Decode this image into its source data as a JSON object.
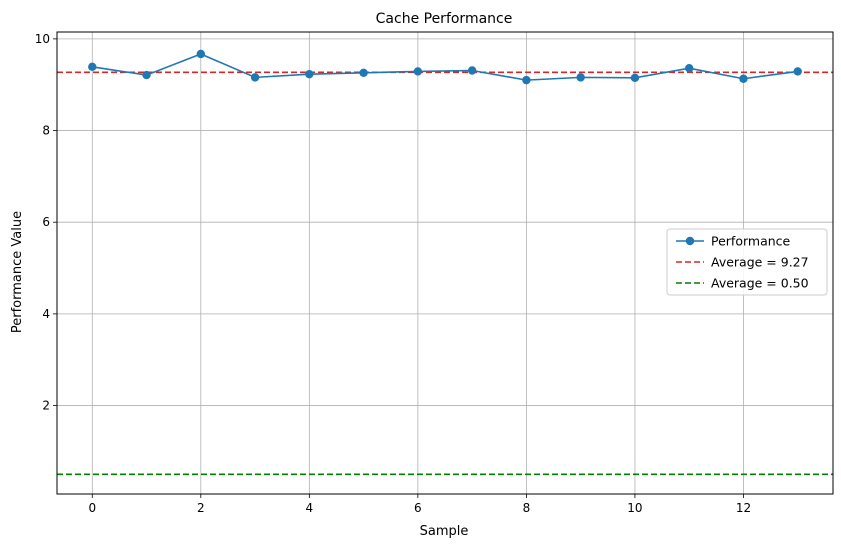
{
  "chart_data": {
    "type": "line",
    "title": "Cache Performance",
    "xlabel": "Sample",
    "ylabel": "Performance Value",
    "xlim": [
      -0.65,
      13.65
    ],
    "ylim": [
      0.07,
      10.15
    ],
    "xticks": [
      0,
      2,
      4,
      6,
      8,
      10,
      12
    ],
    "xtick_labels": [
      "0",
      "2",
      "4",
      "6",
      "8",
      "10",
      "12"
    ],
    "yticks": [
      2,
      4,
      6,
      8,
      10
    ],
    "ytick_labels": [
      "2",
      "4",
      "6",
      "8",
      "10"
    ],
    "grid": true,
    "legend_position": "center-right",
    "series": [
      {
        "name": "Performance",
        "color": "#1f77b4",
        "marker": "circle",
        "x": [
          0,
          1,
          2,
          3,
          4,
          5,
          6,
          7,
          8,
          9,
          10,
          11,
          12,
          13
        ],
        "values": [
          9.39,
          9.21,
          9.67,
          9.16,
          9.23,
          9.26,
          9.29,
          9.31,
          9.1,
          9.16,
          9.15,
          9.36,
          9.13,
          9.29
        ]
      }
    ],
    "reference_lines": [
      {
        "name": "Average = 9.27",
        "value": 9.27,
        "color": "#d62728",
        "style": "dashed"
      },
      {
        "name": "Average = 0.50",
        "value": 0.5,
        "color": "#008000",
        "style": "dashed"
      }
    ]
  }
}
